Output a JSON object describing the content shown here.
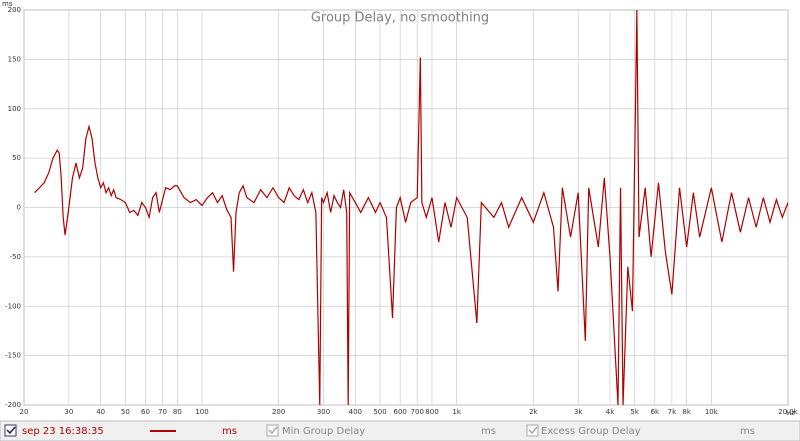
{
  "chart_data": {
    "type": "line",
    "title": "Group Delay, no smoothing",
    "y_unit": "ms",
    "x_unit": "Hz",
    "log_x": true,
    "grid": true,
    "xlim": [
      20,
      20000
    ],
    "ylim": [
      -200,
      200
    ],
    "xticks": [
      20,
      30,
      40,
      50,
      60,
      70,
      80,
      100,
      200,
      300,
      400,
      500,
      600,
      700,
      800,
      {
        "value": 1000,
        "label": "1k"
      },
      {
        "value": 2000,
        "label": "2k"
      },
      {
        "value": 3000,
        "label": "3k"
      },
      {
        "value": 4000,
        "label": "4k"
      },
      {
        "value": 5000,
        "label": "5k"
      },
      {
        "value": 6000,
        "label": "6k"
      },
      {
        "value": 7000,
        "label": "7k"
      },
      {
        "value": 8000,
        "label": "8k"
      },
      {
        "value": 10000,
        "label": "10k"
      },
      {
        "value": 20000,
        "label": "20,0k"
      }
    ],
    "yticks": [
      200,
      150,
      100,
      50,
      0,
      -50,
      -100,
      -150,
      -200
    ],
    "x": [
      22,
      23,
      24,
      25,
      26,
      27,
      27.5,
      28,
      28.5,
      29,
      30,
      31,
      32,
      33,
      34,
      35,
      36,
      37,
      38,
      39,
      40,
      41,
      42,
      43,
      44,
      45,
      46,
      48,
      50,
      52,
      54,
      56,
      58,
      60,
      62,
      64,
      66,
      68,
      70,
      72,
      75,
      78,
      80,
      85,
      90,
      95,
      100,
      105,
      110,
      115,
      120,
      125,
      130,
      133,
      136,
      140,
      145,
      150,
      160,
      170,
      180,
      190,
      200,
      210,
      220,
      230,
      240,
      250,
      260,
      270,
      280,
      290,
      295,
      300,
      310,
      320,
      330,
      340,
      350,
      360,
      370,
      375,
      380,
      400,
      420,
      450,
      480,
      500,
      530,
      560,
      580,
      600,
      630,
      660,
      700,
      720,
      730,
      760,
      800,
      850,
      900,
      950,
      1000,
      1100,
      1200,
      1250,
      1400,
      1500,
      1600,
      1800,
      2000,
      2200,
      2400,
      2500,
      2600,
      2800,
      3000,
      3200,
      3300,
      3600,
      3800,
      4000,
      4300,
      4400,
      4500,
      4700,
      4900,
      5100,
      5200,
      5500,
      5800,
      6200,
      6600,
      7000,
      7500,
      8000,
      8500,
      9000,
      10000,
      11000,
      12000,
      13000,
      14000,
      15000,
      16000,
      17000,
      18000,
      19000,
      20000
    ],
    "series": [
      {
        "name": "sep 23 16:38:35",
        "unit": "ms",
        "color": "#b00000",
        "values": [
          15,
          20,
          25,
          35,
          50,
          58,
          55,
          30,
          -10,
          -28,
          0,
          30,
          45,
          30,
          40,
          70,
          82,
          70,
          45,
          30,
          20,
          25,
          15,
          20,
          12,
          18,
          10,
          8,
          5,
          -5,
          -3,
          -8,
          5,
          0,
          -10,
          10,
          15,
          -5,
          8,
          20,
          18,
          22,
          22,
          10,
          5,
          8,
          2,
          10,
          15,
          5,
          12,
          -2,
          -10,
          -65,
          -5,
          15,
          22,
          10,
          5,
          18,
          10,
          20,
          10,
          5,
          20,
          12,
          8,
          18,
          5,
          15,
          -5,
          -200,
          10,
          5,
          15,
          -5,
          12,
          5,
          0,
          18,
          -5,
          -200,
          15,
          5,
          -5,
          10,
          -5,
          5,
          -10,
          -112,
          0,
          10,
          -15,
          5,
          10,
          152,
          5,
          -10,
          10,
          -35,
          5,
          -20,
          10,
          -10,
          -117,
          5,
          -10,
          5,
          -20,
          10,
          -15,
          15,
          -20,
          -85,
          20,
          -30,
          15,
          -135,
          20,
          -40,
          30,
          -50,
          -200,
          20,
          -200,
          -60,
          -105,
          200,
          -30,
          20,
          -50,
          25,
          -45,
          -88,
          20,
          -40,
          15,
          -30,
          20,
          -35,
          15,
          -25,
          10,
          -20,
          10,
          -15,
          8,
          -10,
          5
        ]
      }
    ],
    "inactive_series": [
      {
        "name": "Min Group Delay",
        "unit": "ms"
      },
      {
        "name": "Excess Group Delay",
        "unit": "ms"
      }
    ]
  }
}
